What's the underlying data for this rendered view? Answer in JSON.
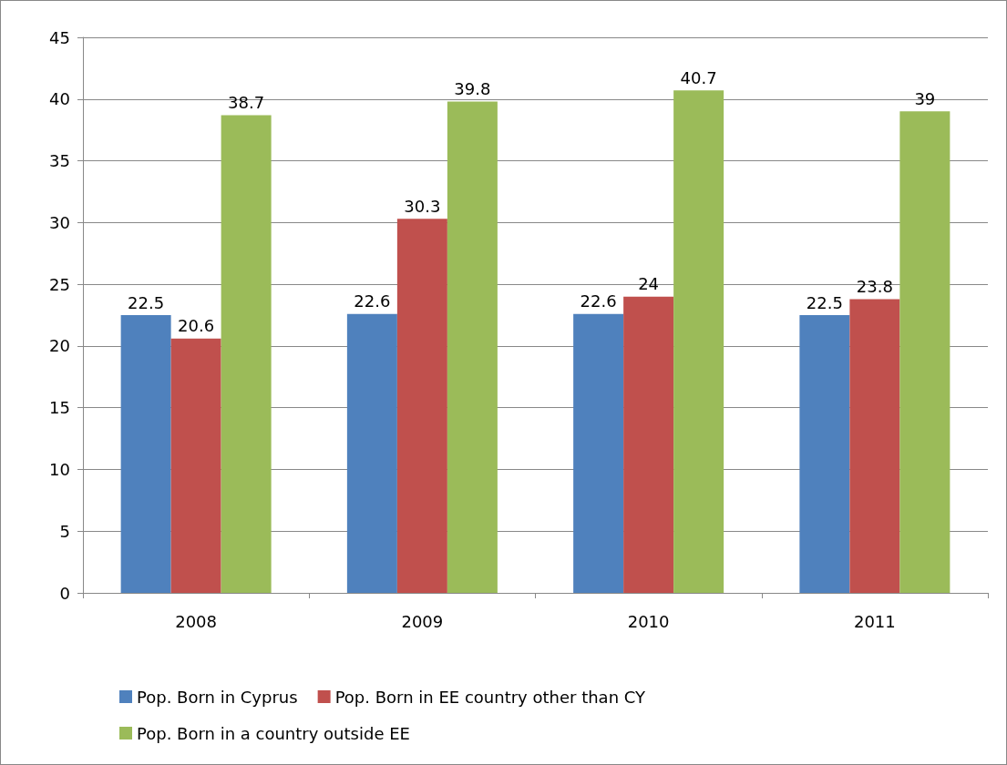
{
  "chart_data": {
    "type": "bar",
    "categories": [
      "2008",
      "2009",
      "2010",
      "2011"
    ],
    "series": [
      {
        "name": "Pop. Born in Cyprus",
        "color": "#4f81bd",
        "values": [
          22.5,
          22.6,
          22.6,
          22.5
        ]
      },
      {
        "name": "Pop. Born in EE country other than CY",
        "color": "#c0504d",
        "values": [
          20.6,
          30.3,
          24,
          23.8
        ]
      },
      {
        "name": "Pop. Born in a country outside EE",
        "color": "#9bbb59",
        "values": [
          38.7,
          39.8,
          40.7,
          39
        ]
      }
    ],
    "ylim": [
      0,
      45
    ],
    "yticks": [
      0,
      5,
      10,
      15,
      20,
      25,
      30,
      35,
      40,
      45
    ],
    "grid": "y",
    "legend": "bottom",
    "data_labels": true
  }
}
